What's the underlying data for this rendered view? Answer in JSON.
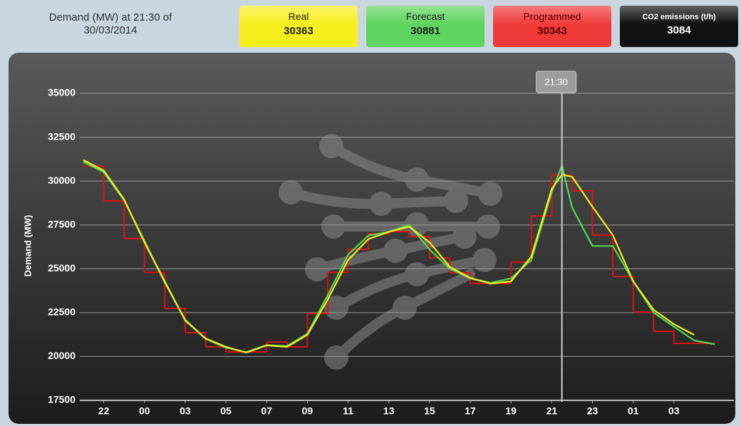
{
  "header": {
    "title": "Demand (MW) at 21:30 of 30/03/2014",
    "cards": [
      {
        "label": "Real",
        "value": 30363,
        "color": "#f7ef1e",
        "text_color": "#222"
      },
      {
        "label": "Forecast",
        "value": 30881,
        "color": "#5ed45e",
        "text_color": "#222"
      },
      {
        "label": "Programmed",
        "value": 30343,
        "color": "#f03a3a",
        "text_color": "#5a0000"
      },
      {
        "label": "CO2 emissions (t/h)",
        "value": 3084,
        "color": "#111111",
        "text_color": "#ffffff"
      }
    ]
  },
  "chart_data": {
    "type": "line",
    "y_label": "Demand (MW)",
    "ylim": [
      17500,
      35000
    ],
    "yticks": [
      17500,
      20000,
      22500,
      25000,
      27500,
      30000,
      32500,
      35000
    ],
    "xlim": [
      0,
      31
    ],
    "xticks": [
      {
        "value": 1,
        "label": "22"
      },
      {
        "value": 3,
        "label": "00"
      },
      {
        "value": 5,
        "label": "03"
      },
      {
        "value": 7,
        "label": "05"
      },
      {
        "value": 9,
        "label": "07"
      },
      {
        "value": 11,
        "label": "09"
      },
      {
        "value": 13,
        "label": "11"
      },
      {
        "value": 15,
        "label": "13"
      },
      {
        "value": 17,
        "label": "15"
      },
      {
        "value": 19,
        "label": "17"
      },
      {
        "value": 21,
        "label": "19"
      },
      {
        "value": 23,
        "label": "21"
      },
      {
        "value": 25,
        "label": "23"
      },
      {
        "value": 27,
        "label": "01"
      },
      {
        "value": 29,
        "label": "03"
      }
    ],
    "grid": true,
    "marker": {
      "x": 23.5,
      "label": "21:30"
    },
    "series": [
      {
        "name": "Programmed",
        "color": "#e01010",
        "step": true,
        "x": [
          0,
          1,
          2,
          3,
          4,
          5,
          6,
          7,
          8,
          9,
          10,
          11,
          12,
          13,
          14,
          15,
          16,
          17,
          18,
          19,
          20,
          21,
          22,
          23,
          24,
          25,
          26,
          27,
          28,
          29,
          30
        ],
        "values": [
          30860,
          28870,
          26720,
          24800,
          22740,
          21360,
          20550,
          20260,
          20260,
          20830,
          20550,
          22450,
          24800,
          26110,
          27000,
          27120,
          26840,
          25620,
          24770,
          24160,
          24160,
          25380,
          28010,
          30343,
          29440,
          26920,
          24560,
          22530,
          21440,
          20750,
          20750
        ]
      },
      {
        "name": "Forecast",
        "color": "#4fdc4f",
        "x": [
          0,
          1,
          2,
          3,
          4,
          5,
          6,
          7,
          8,
          9,
          10,
          11,
          12,
          13,
          14,
          15,
          16,
          17,
          18,
          19,
          20,
          21,
          22,
          23,
          23.5,
          24,
          25,
          26,
          27,
          28,
          29,
          30,
          31
        ],
        "values": [
          31100,
          30500,
          28900,
          26600,
          24200,
          22100,
          21000,
          20500,
          20250,
          20650,
          20600,
          21300,
          23500,
          25800,
          26900,
          27100,
          27500,
          26100,
          25000,
          24450,
          24200,
          24450,
          25500,
          29360,
          30881,
          28500,
          26300,
          26300,
          24300,
          22500,
          21700,
          20910,
          20700
        ]
      },
      {
        "name": "Real",
        "color": "#f5f01a",
        "x": [
          0,
          1,
          2,
          3,
          4,
          5,
          6,
          7,
          8,
          9,
          10,
          11,
          12,
          13,
          14,
          15,
          16,
          17,
          18,
          19,
          20,
          21,
          22,
          23,
          23.5,
          24,
          25,
          26,
          27,
          28,
          29,
          30
        ],
        "values": [
          31200,
          30600,
          28950,
          26500,
          24280,
          22050,
          21030,
          20550,
          20220,
          20630,
          20550,
          21230,
          23250,
          25500,
          26700,
          27100,
          27400,
          26500,
          25100,
          24480,
          24150,
          24280,
          25700,
          29560,
          30363,
          30250,
          28540,
          26920,
          24280,
          22660,
          21840,
          21230
        ]
      }
    ]
  }
}
